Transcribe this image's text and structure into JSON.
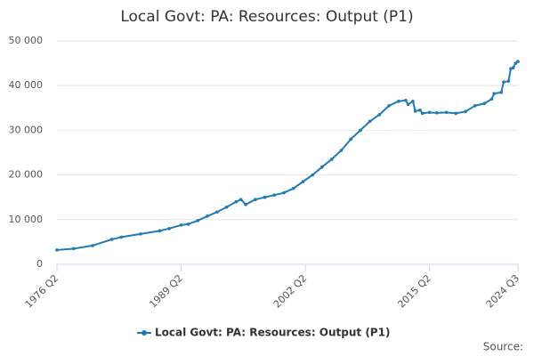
{
  "chart_data": {
    "type": "line",
    "title": "Local Govt: PA: Resources: Output (P1)",
    "x": [
      1976.25,
      1978,
      1980,
      1982,
      1983,
      1985,
      1987,
      1988,
      1989.25,
      1990,
      1991,
      1992,
      1993,
      1994,
      1995,
      1995.5,
      1996,
      1997,
      1998,
      1999,
      2000,
      2001,
      2002,
      2003,
      2004,
      2005,
      2006,
      2007,
      2008,
      2009,
      2010,
      2011,
      2012,
      2012.75,
      2013,
      2013.5,
      2013.75,
      2014.25,
      2014.5,
      2015.25,
      2016,
      2017,
      2018,
      2019,
      2020,
      2021,
      2021.75,
      2022,
      2022.75,
      2023,
      2023.5,
      2023.75,
      2024,
      2024.25,
      2024.5
    ],
    "series": [
      {
        "name": "Local Govt: PA: Resources: Output (P1)",
        "color": "#1f7bb5",
        "values": [
          3200,
          3500,
          4200,
          5600,
          6100,
          6800,
          7500,
          8000,
          8800,
          9000,
          9800,
          10800,
          11700,
          12800,
          14000,
          14500,
          13400,
          14500,
          15000,
          15500,
          16000,
          17000,
          18500,
          20000,
          21800,
          23500,
          25500,
          28000,
          30000,
          32000,
          33500,
          35500,
          36500,
          36700,
          35800,
          36500,
          34300,
          34500,
          33800,
          34000,
          33900,
          34000,
          33800,
          34200,
          35500,
          36000,
          37000,
          38200,
          38500,
          40800,
          41000,
          43800,
          44000,
          45000,
          45400
        ]
      }
    ],
    "xlim": [
      1976.25,
      2024.5
    ],
    "xticks": [
      {
        "value": 1976.25,
        "label": "1976 Q2"
      },
      {
        "value": 1989.25,
        "label": "1989 Q2"
      },
      {
        "value": 2002.25,
        "label": "2002 Q2"
      },
      {
        "value": 2015.25,
        "label": "2015 Q2"
      },
      {
        "value": 2024.5,
        "label": "2024 Q3"
      }
    ],
    "ylim": [
      0,
      50000
    ],
    "yticks": [
      0,
      {
        "value": 10000,
        "label": "10 000"
      },
      {
        "value": 20000,
        "label": "20 000"
      },
      {
        "value": 30000,
        "label": "30 000"
      },
      {
        "value": 40000,
        "label": "40 000"
      },
      {
        "value": 50000,
        "label": "50 000"
      }
    ],
    "grid": true,
    "legend": "bottom",
    "source": "Source:"
  }
}
